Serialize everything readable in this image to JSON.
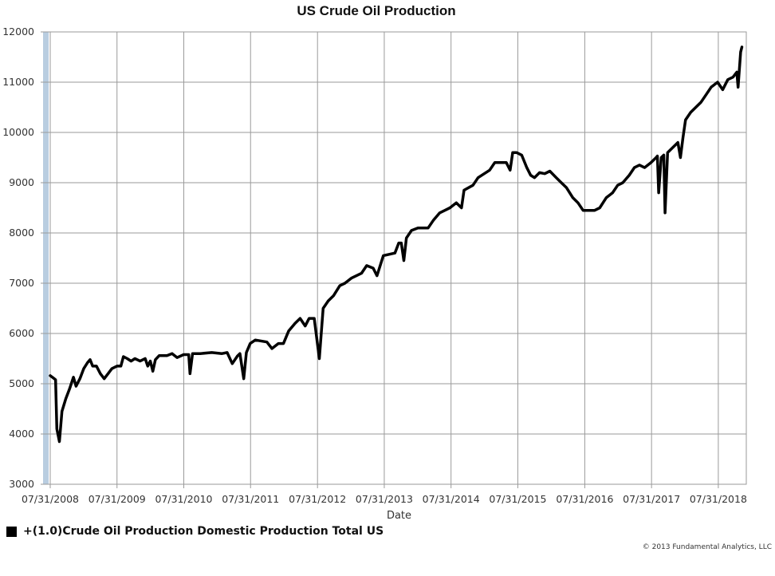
{
  "chart_data": {
    "type": "line",
    "title": "US Crude Oil Production",
    "xlabel": "Date",
    "ylabel": "",
    "ylim": [
      3000,
      12000
    ],
    "xlim": [
      "2008-07-31",
      "2018-12-31"
    ],
    "y_ticks": [
      3000,
      4000,
      5000,
      6000,
      7000,
      8000,
      9000,
      10000,
      11000,
      12000
    ],
    "x_ticks": [
      "07/31/2008",
      "07/31/2009",
      "07/31/2010",
      "07/31/2011",
      "07/31/2012",
      "07/31/2013",
      "07/31/2014",
      "07/31/2015",
      "07/31/2016",
      "07/31/2017",
      "07/31/2018"
    ],
    "grid": true,
    "legend_position": "bottom-left",
    "series": [
      {
        "name": "+(1.0)Crude Oil Production Domestic Production Total US",
        "color": "#000000",
        "points": [
          [
            "2008-07-31",
            5160
          ],
          [
            "2008-08-15",
            5120
          ],
          [
            "2008-08-29",
            5080
          ],
          [
            "2008-09-05",
            4100
          ],
          [
            "2008-09-19",
            3850
          ],
          [
            "2008-10-03",
            4450
          ],
          [
            "2008-10-24",
            4700
          ],
          [
            "2008-11-14",
            4900
          ],
          [
            "2008-12-05",
            5130
          ],
          [
            "2008-12-19",
            4950
          ],
          [
            "2009-01-09",
            5100
          ],
          [
            "2009-01-30",
            5300
          ],
          [
            "2009-02-20",
            5420
          ],
          [
            "2009-03-06",
            5480
          ],
          [
            "2009-03-20",
            5350
          ],
          [
            "2009-04-10",
            5350
          ],
          [
            "2009-05-01",
            5200
          ],
          [
            "2009-05-22",
            5100
          ],
          [
            "2009-06-12",
            5200
          ],
          [
            "2009-07-03",
            5300
          ],
          [
            "2009-07-31",
            5350
          ],
          [
            "2009-08-21",
            5350
          ],
          [
            "2009-09-04",
            5540
          ],
          [
            "2009-09-25",
            5500
          ],
          [
            "2009-10-16",
            5450
          ],
          [
            "2009-11-06",
            5500
          ],
          [
            "2009-12-04",
            5450
          ],
          [
            "2010-01-01",
            5500
          ],
          [
            "2010-01-15",
            5350
          ],
          [
            "2010-01-29",
            5450
          ],
          [
            "2010-02-12",
            5250
          ],
          [
            "2010-02-26",
            5480
          ],
          [
            "2010-03-19",
            5560
          ],
          [
            "2010-04-30",
            5560
          ],
          [
            "2010-05-28",
            5600
          ],
          [
            "2010-06-25",
            5520
          ],
          [
            "2010-07-30",
            5580
          ],
          [
            "2010-08-27",
            5580
          ],
          [
            "2010-09-03",
            5200
          ],
          [
            "2010-09-17",
            5600
          ],
          [
            "2010-10-29",
            5600
          ],
          [
            "2010-12-31",
            5620
          ],
          [
            "2011-02-25",
            5600
          ],
          [
            "2011-03-25",
            5620
          ],
          [
            "2011-04-22",
            5400
          ],
          [
            "2011-05-20",
            5550
          ],
          [
            "2011-06-03",
            5600
          ],
          [
            "2011-06-24",
            5100
          ],
          [
            "2011-07-08",
            5620
          ],
          [
            "2011-07-29",
            5800
          ],
          [
            "2011-08-26",
            5870
          ],
          [
            "2011-10-28",
            5830
          ],
          [
            "2011-11-25",
            5700
          ],
          [
            "2011-12-30",
            5800
          ],
          [
            "2012-01-27",
            5800
          ],
          [
            "2012-02-24",
            6050
          ],
          [
            "2012-03-30",
            6200
          ],
          [
            "2012-04-27",
            6300
          ],
          [
            "2012-05-25",
            6150
          ],
          [
            "2012-06-15",
            6300
          ],
          [
            "2012-07-13",
            6300
          ],
          [
            "2012-08-10",
            5500
          ],
          [
            "2012-08-31",
            6500
          ],
          [
            "2012-09-28",
            6650
          ],
          [
            "2012-10-26",
            6750
          ],
          [
            "2012-11-30",
            6950
          ],
          [
            "2012-12-28",
            7000
          ],
          [
            "2013-02-01",
            7100
          ],
          [
            "2013-03-29",
            7200
          ],
          [
            "2013-04-26",
            7350
          ],
          [
            "2013-05-31",
            7300
          ],
          [
            "2013-06-21",
            7150
          ],
          [
            "2013-07-26",
            7550
          ],
          [
            "2013-09-27",
            7600
          ],
          [
            "2013-10-18",
            7800
          ],
          [
            "2013-11-01",
            7800
          ],
          [
            "2013-11-15",
            7450
          ],
          [
            "2013-11-29",
            7900
          ],
          [
            "2013-12-27",
            8050
          ],
          [
            "2014-01-31",
            8100
          ],
          [
            "2014-02-28",
            8100
          ],
          [
            "2014-03-28",
            8100
          ],
          [
            "2014-04-25",
            8250
          ],
          [
            "2014-05-30",
            8400
          ],
          [
            "2014-06-27",
            8450
          ],
          [
            "2014-07-25",
            8500
          ],
          [
            "2014-08-29",
            8600
          ],
          [
            "2014-09-26",
            8500
          ],
          [
            "2014-10-10",
            8850
          ],
          [
            "2014-11-28",
            8950
          ],
          [
            "2014-12-26",
            9100
          ],
          [
            "2015-02-27",
            9250
          ],
          [
            "2015-03-27",
            9400
          ],
          [
            "2015-05-29",
            9400
          ],
          [
            "2015-06-19",
            9250
          ],
          [
            "2015-07-03",
            9600
          ],
          [
            "2015-07-24",
            9600
          ],
          [
            "2015-08-21",
            9550
          ],
          [
            "2015-09-18",
            9300
          ],
          [
            "2015-10-09",
            9150
          ],
          [
            "2015-10-30",
            9100
          ],
          [
            "2015-11-27",
            9200
          ],
          [
            "2015-12-25",
            9180
          ],
          [
            "2016-01-22",
            9230
          ],
          [
            "2016-02-26",
            9100
          ],
          [
            "2016-03-25",
            9000
          ],
          [
            "2016-04-22",
            8900
          ],
          [
            "2016-05-27",
            8700
          ],
          [
            "2016-06-24",
            8600
          ],
          [
            "2016-07-22",
            8450
          ],
          [
            "2016-08-26",
            8450
          ],
          [
            "2016-09-23",
            8450
          ],
          [
            "2016-10-21",
            8500
          ],
          [
            "2016-11-25",
            8700
          ],
          [
            "2016-12-30",
            8800
          ],
          [
            "2017-01-27",
            8950
          ],
          [
            "2017-02-24",
            9000
          ],
          [
            "2017-03-31",
            9150
          ],
          [
            "2017-04-28",
            9300
          ],
          [
            "2017-05-26",
            9350
          ],
          [
            "2017-06-23",
            9300
          ],
          [
            "2017-07-28",
            9400
          ],
          [
            "2017-08-25",
            9500
          ],
          [
            "2017-09-01",
            9530
          ],
          [
            "2017-09-08",
            8800
          ],
          [
            "2017-09-22",
            9500
          ],
          [
            "2017-10-06",
            9550
          ],
          [
            "2017-10-13",
            8400
          ],
          [
            "2017-10-27",
            9600
          ],
          [
            "2017-11-24",
            9700
          ],
          [
            "2017-12-22",
            9800
          ],
          [
            "2018-01-05",
            9500
          ],
          [
            "2018-01-19",
            9900
          ],
          [
            "2018-02-02",
            10250
          ],
          [
            "2018-03-02",
            10400
          ],
          [
            "2018-03-30",
            10500
          ],
          [
            "2018-04-27",
            10600
          ],
          [
            "2018-05-25",
            10750
          ],
          [
            "2018-06-22",
            10900
          ],
          [
            "2018-07-27",
            11000
          ],
          [
            "2018-08-24",
            10850
          ],
          [
            "2018-09-21",
            11050
          ],
          [
            "2018-10-19",
            11100
          ],
          [
            "2018-11-09",
            11200
          ],
          [
            "2018-11-16",
            10900
          ],
          [
            "2018-11-30",
            11600
          ],
          [
            "2018-12-07",
            11700
          ]
        ]
      }
    ]
  },
  "footer": {
    "copyright": "© 2013 Fundamental Analytics, LLC"
  }
}
